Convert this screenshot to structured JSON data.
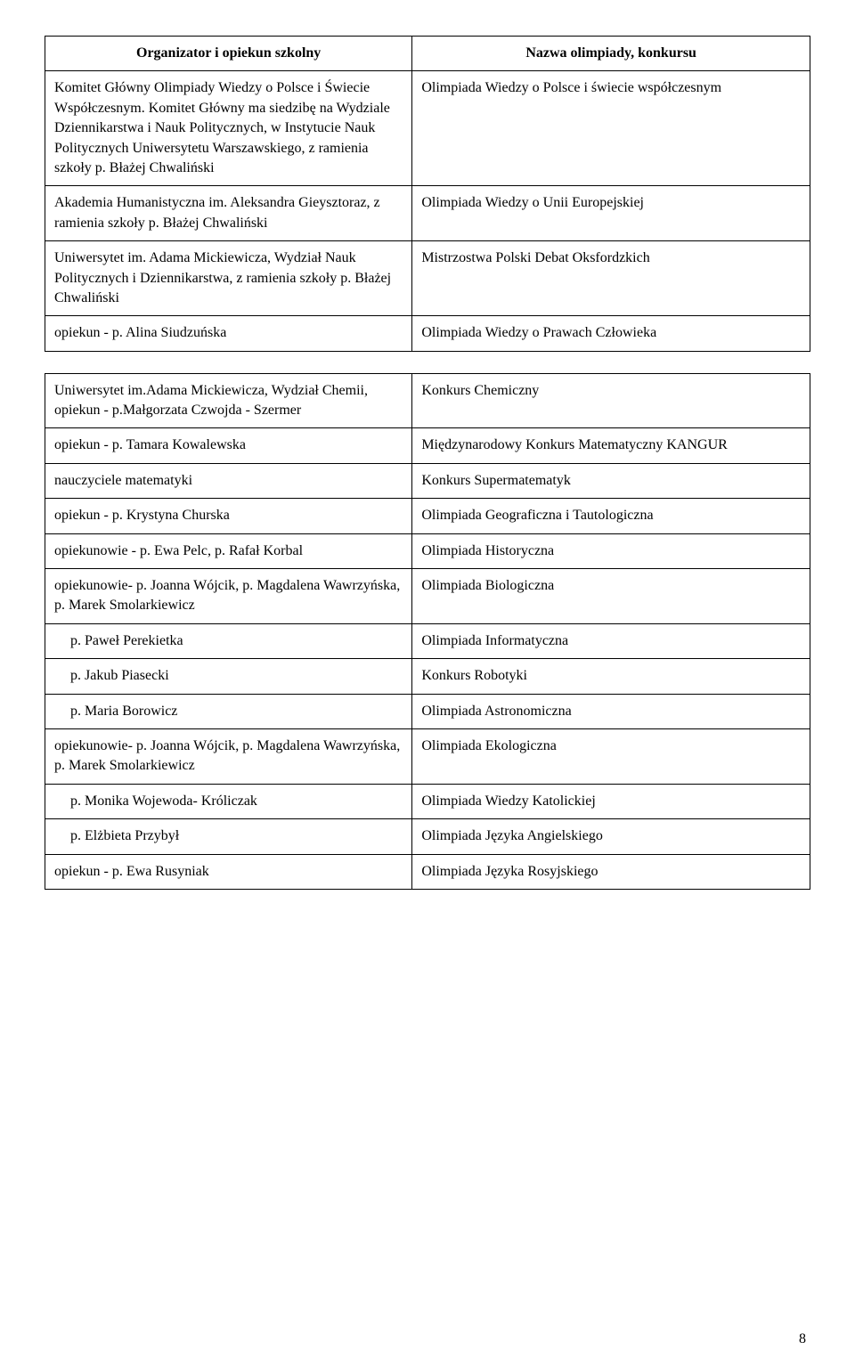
{
  "header": {
    "col1": "Organizator i opiekun szkolny",
    "col2": "Nazwa olimpiady, konkursu"
  },
  "rows1": [
    {
      "left": "Komitet Główny Olimpiady Wiedzy o Polsce i Świecie Współczesnym. Komitet Główny ma siedzibę na Wydziale Dziennikarstwa i Nauk Politycznych, w Instytucie Nauk Politycznych Uniwersytetu Warszawskiego, z ramienia szkoły p. Błażej Chwaliński",
      "right": "Olimpiada Wiedzy o Polsce i świecie współczesnym"
    },
    {
      "left": "Akademia Humanistyczna im. Aleksandra Gieysztoraz, z ramienia szkoły p. Błażej Chwaliński",
      "right": "Olimpiada Wiedzy o Unii Europejskiej"
    },
    {
      "left": "Uniwersytet im. Adama Mickiewicza, Wydział Nauk Politycznych i Dziennikarstwa, z ramienia szkoły p. Błażej Chwaliński",
      "right": "Mistrzostwa Polski Debat Oksfordzkich"
    },
    {
      "left": "opiekun - p. Alina Siudzuńska",
      "right": "Olimpiada Wiedzy o Prawach Człowieka"
    }
  ],
  "rows2": [
    {
      "left": "Uniwersytet im.Adama Mickiewicza, Wydział Chemii,  opiekun - p.Małgorzata Czwojda - Szermer",
      "right": "Konkurs Chemiczny",
      "indent": false
    },
    {
      "left": "opiekun - p. Tamara Kowalewska",
      "right": "Międzynarodowy Konkurs Matematyczny KANGUR",
      "indent": false
    },
    {
      "left": "nauczyciele matematyki",
      "right": "Konkurs Supermatematyk",
      "indent": false
    },
    {
      "left": "opiekun - p. Krystyna Churska",
      "right": "Olimpiada Geograficzna i Tautologiczna",
      "indent": false
    },
    {
      "left": "opiekunowie - p. Ewa Pelc, p. Rafał Korbal",
      "right": "Olimpiada Historyczna",
      "indent": false
    },
    {
      "left": "opiekunowie- p. Joanna Wójcik, p. Magdalena Wawrzyńska, p. Marek Smolarkiewicz",
      "right": "Olimpiada Biologiczna",
      "indent": false
    },
    {
      "left": "p.   Paweł Perekietka",
      "right": "Olimpiada Informatyczna",
      "indent": true
    },
    {
      "left": "p.    Jakub Piasecki",
      "right": "Konkurs Robotyki",
      "indent": true
    },
    {
      "left": "p.   Maria Borowicz",
      "right": "Olimpiada Astronomiczna",
      "indent": true
    },
    {
      "left": "opiekunowie- p. Joanna Wójcik, p. Magdalena Wawrzyńska, p. Marek Smolarkiewicz",
      "right": "Olimpiada Ekologiczna",
      "indent": false
    },
    {
      "left": "p.   Monika Wojewoda- Króliczak",
      "right": "Olimpiada Wiedzy Katolickiej",
      "indent": true
    },
    {
      "left": "p.   Elżbieta Przybył",
      "right": "Olimpiada Języka Angielskiego",
      "indent": true
    },
    {
      "left": "opiekun - p. Ewa Rusyniak",
      "right": "Olimpiada Języka Rosyjskiego",
      "indent": false
    }
  ],
  "page_number": "8"
}
